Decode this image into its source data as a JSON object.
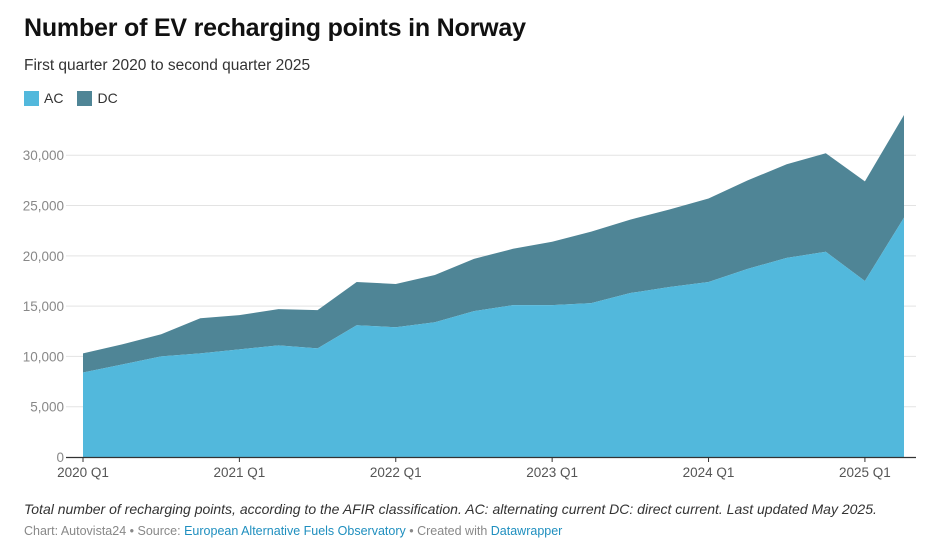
{
  "header": {
    "title": "Number of EV recharging points in Norway",
    "subtitle": "First quarter 2020 to second quarter 2025"
  },
  "footer": {
    "note": "Total number of recharging points, according to the AFIR classification. AC: alternating current DC: direct current. Last updated May 2025.",
    "chart_prefix": "Chart: Autovista24",
    "source_prefix": "Source:",
    "source_link": "European Alternative Fuels Observatory",
    "created_prefix": "Created with",
    "created_link": "Datawrapper",
    "separator": "•"
  },
  "colors": {
    "ac": "#52b8dc",
    "dc": "#4f8596",
    "grid": "#e3e3e3",
    "axis": "#333333",
    "tick_text": "#888888"
  },
  "chart_data": {
    "type": "area",
    "stacked": true,
    "title": "Number of EV recharging points in Norway",
    "subtitle": "First quarter 2020 to second quarter 2025",
    "x": [
      "2020 Q1",
      "2020 Q2",
      "2020 Q3",
      "2020 Q4",
      "2021 Q1",
      "2021 Q2",
      "2021 Q3",
      "2021 Q4",
      "2022 Q1",
      "2022 Q2",
      "2022 Q3",
      "2022 Q4",
      "2023 Q1",
      "2023 Q2",
      "2023 Q3",
      "2023 Q4",
      "2024 Q1",
      "2024 Q2",
      "2024 Q3",
      "2024 Q4",
      "2025 Q1",
      "2025 Q2"
    ],
    "x_tick_labels": [
      "2020 Q1",
      "2021 Q1",
      "2022 Q1",
      "2023 Q1",
      "2024 Q1",
      "2025 Q1"
    ],
    "series": [
      {
        "name": "AC",
        "color": "#52b8dc",
        "values": [
          8400,
          9200,
          10000,
          10300,
          10700,
          11100,
          10800,
          13100,
          12900,
          13400,
          14500,
          15100,
          15100,
          15300,
          16300,
          16900,
          17400,
          18700,
          19800,
          20400,
          17500,
          23800
        ]
      },
      {
        "name": "DC",
        "color": "#4f8596",
        "values": [
          1900,
          2000,
          2200,
          3500,
          3400,
          3600,
          3800,
          4300,
          4300,
          4700,
          5200,
          5600,
          6300,
          7100,
          7300,
          7700,
          8300,
          8800,
          9300,
          9800,
          9900,
          10200
        ]
      }
    ],
    "y_ticks": [
      0,
      5000,
      10000,
      15000,
      20000,
      25000,
      30000
    ],
    "y_tick_labels": [
      "0",
      "5,000",
      "10,000",
      "15,000",
      "20,000",
      "25,000",
      "30,000"
    ],
    "ylim": [
      0,
      34000
    ],
    "grid": true,
    "legend": "top-left"
  }
}
